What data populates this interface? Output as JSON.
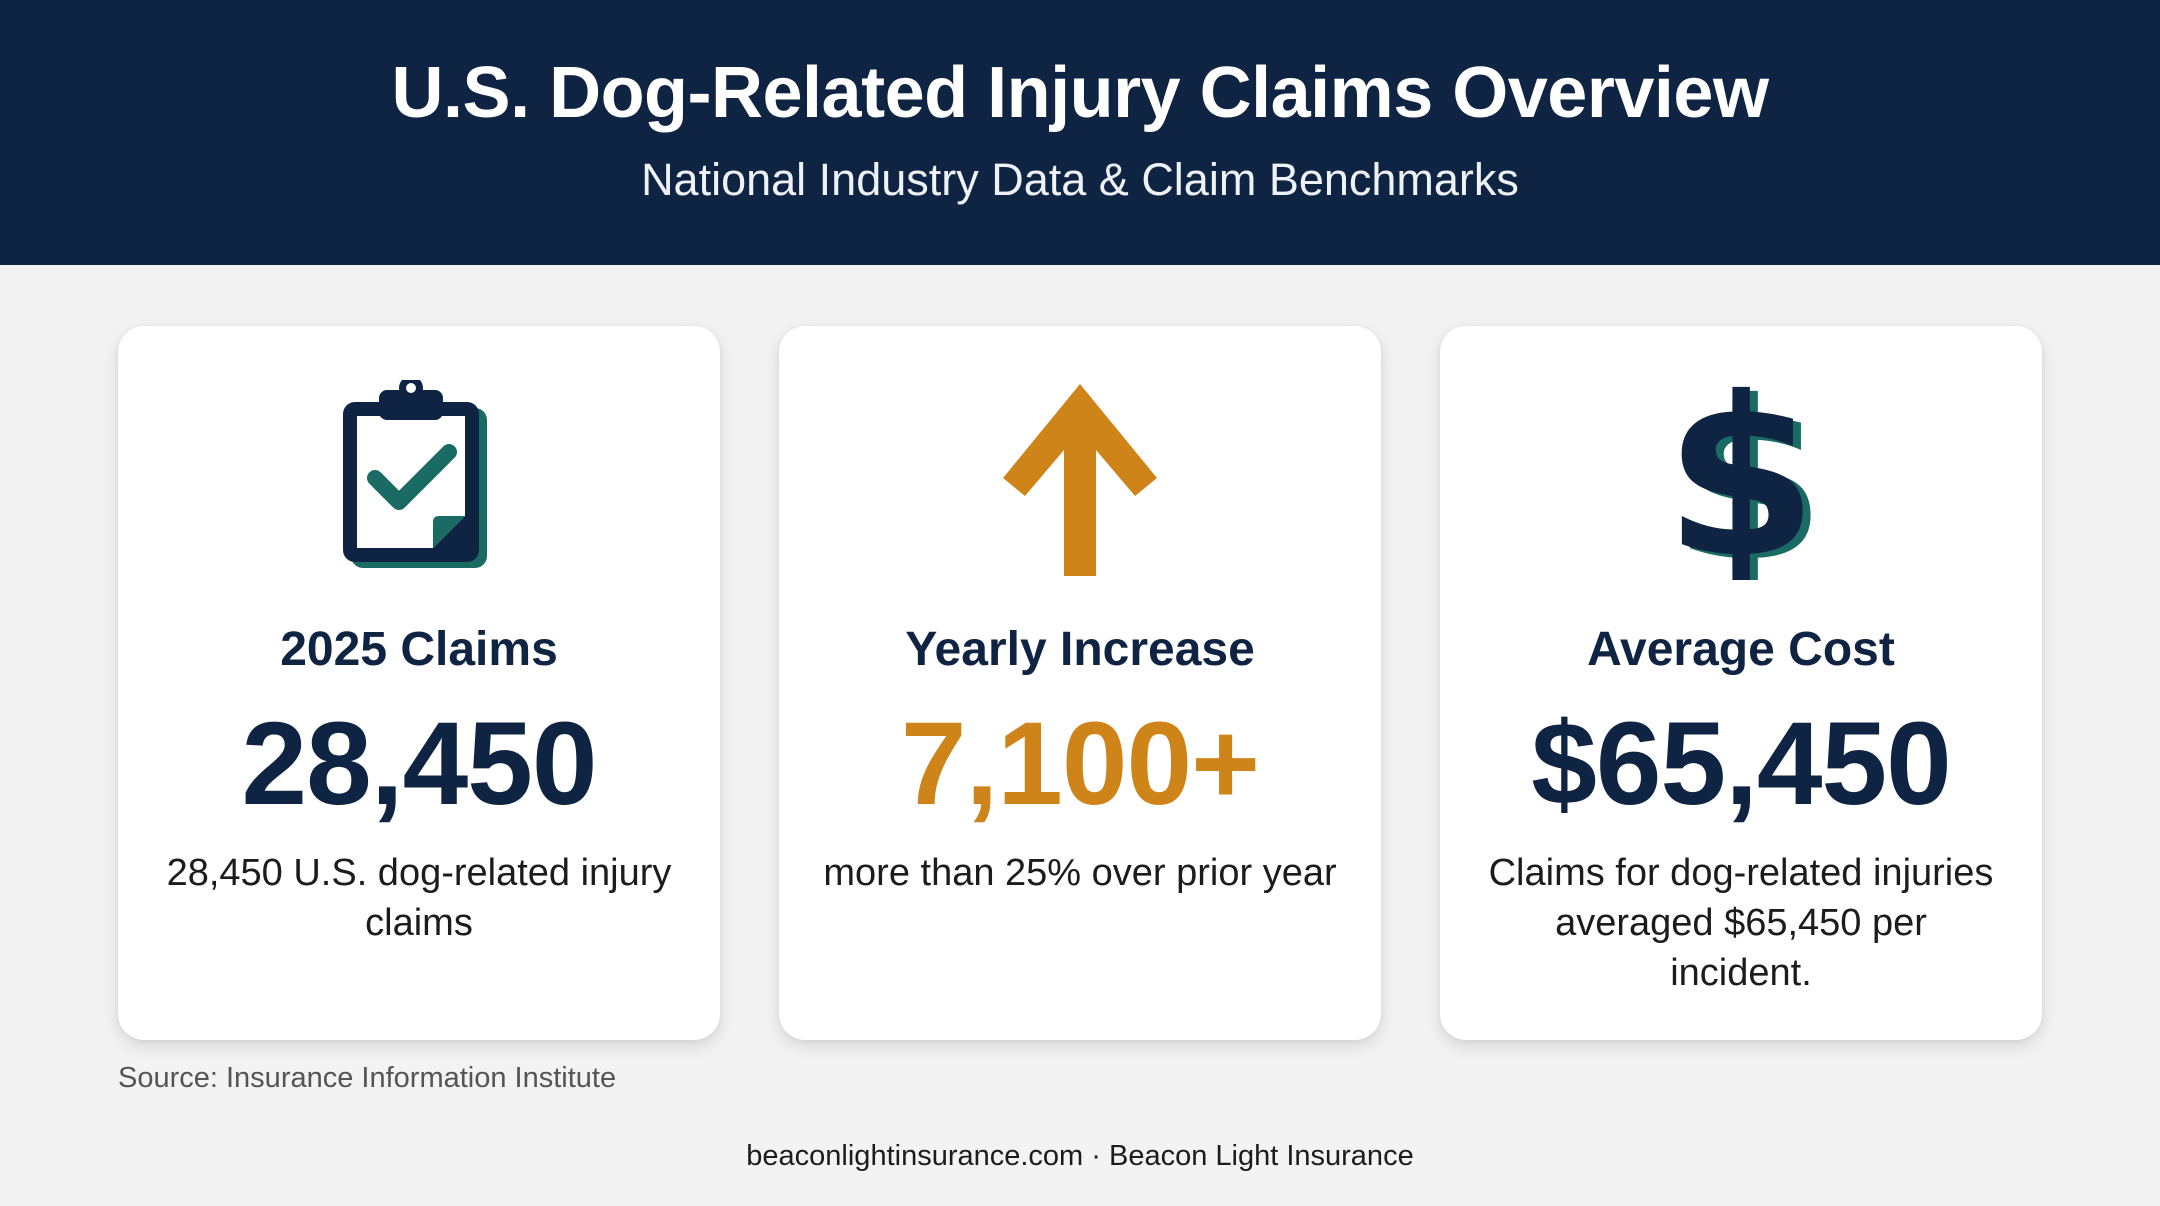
{
  "header": {
    "title": "U.S. Dog-Related Injury Claims Overview",
    "subtitle": "National Industry Data & Claim Benchmarks"
  },
  "cards": [
    {
      "icon": "clipboard-check-icon",
      "label": "2025 Claims",
      "value": "28,450",
      "description": "28,450 U.S. dog-related injury claims"
    },
    {
      "icon": "arrow-up-icon",
      "label": "Yearly Increase",
      "value": "7,100+",
      "description": "more than 25% over prior year"
    },
    {
      "icon": "dollar-sign-icon",
      "label": "Average Cost",
      "value": "$65,450",
      "description": "Claims for dog-related injuries averaged $65,450 per incident."
    }
  ],
  "source": "Source: Insurance Information Institute",
  "footer": "beaconlightinsurance.com · Beacon Light Insurance",
  "colors": {
    "header_bg": "#0f2342",
    "navy": "#0f2342",
    "teal": "#1a6b64",
    "orange": "#cf8419",
    "page_bg": "#f3f3f3"
  }
}
